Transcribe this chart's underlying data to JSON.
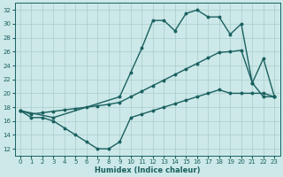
{
  "xlabel": "Humidex (Indice chaleur)",
  "background_color": "#cce8e8",
  "grid_color": "#aacccc",
  "line_color": "#1a6060",
  "xlim": [
    -0.5,
    23.5
  ],
  "ylim": [
    11,
    33
  ],
  "yticks": [
    12,
    14,
    16,
    18,
    20,
    22,
    24,
    26,
    28,
    30,
    32
  ],
  "xticks": [
    0,
    1,
    2,
    3,
    4,
    5,
    6,
    7,
    8,
    9,
    10,
    11,
    12,
    13,
    14,
    15,
    16,
    17,
    18,
    19,
    20,
    21,
    22,
    23
  ],
  "line_bottom_x": [
    0,
    1,
    2,
    3,
    4,
    5,
    6,
    7,
    8,
    9,
    10,
    11,
    12,
    13,
    14,
    15,
    16,
    17,
    18,
    19,
    20,
    21,
    22,
    23
  ],
  "line_bottom_y": [
    17.5,
    16.5,
    16.5,
    16.0,
    15.0,
    14.0,
    13.0,
    12.0,
    12.0,
    13.0,
    16.5,
    17.0,
    17.5,
    18.0,
    18.5,
    19.0,
    19.5,
    20.0,
    20.5,
    20.0,
    20.0,
    20.0,
    20.0,
    19.5
  ],
  "line_mid_x": [
    0,
    1,
    2,
    3,
    4,
    5,
    6,
    7,
    8,
    9,
    10,
    11,
    12,
    13,
    14,
    15,
    16,
    17,
    18,
    19,
    20,
    21,
    22,
    23
  ],
  "line_mid_y": [
    17.5,
    17.0,
    17.2,
    17.4,
    17.6,
    17.8,
    18.0,
    18.2,
    18.4,
    18.7,
    19.5,
    20.3,
    21.1,
    21.9,
    22.7,
    23.5,
    24.3,
    25.1,
    25.9,
    26.0,
    26.2,
    21.5,
    19.5,
    19.5
  ],
  "line_top_x": [
    0,
    3,
    9,
    10,
    11,
    12,
    13,
    14,
    15,
    16,
    17,
    18,
    19,
    20,
    21,
    22,
    23
  ],
  "line_top_y": [
    17.5,
    16.5,
    19.5,
    23.0,
    26.5,
    30.5,
    30.5,
    29.0,
    31.5,
    32.0,
    31.0,
    31.0,
    28.5,
    30.0,
    21.5,
    25.0,
    19.5
  ],
  "marker_size": 2.8,
  "line_width": 1.0
}
